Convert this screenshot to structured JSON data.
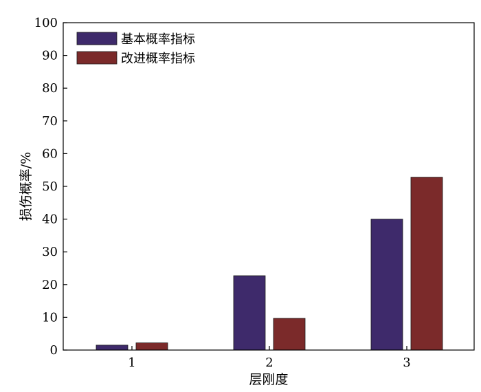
{
  "chart_data": {
    "type": "bar",
    "title": "",
    "xlabel": "层刚度",
    "ylabel": "损伤概率/%",
    "categories": [
      "1",
      "2",
      "3"
    ],
    "series": [
      {
        "name": "基本概率指标",
        "color": "#3e2a6b",
        "values": [
          1.5,
          22.7,
          40.0
        ]
      },
      {
        "name": "改进概率指标",
        "color": "#7b2a2a",
        "values": [
          2.2,
          9.7,
          52.8
        ]
      }
    ],
    "ylim": [
      0,
      100
    ],
    "yticks": [
      0,
      10,
      20,
      30,
      40,
      50,
      60,
      70,
      80,
      90,
      100
    ],
    "grid": false,
    "legend_position": "top-left"
  }
}
